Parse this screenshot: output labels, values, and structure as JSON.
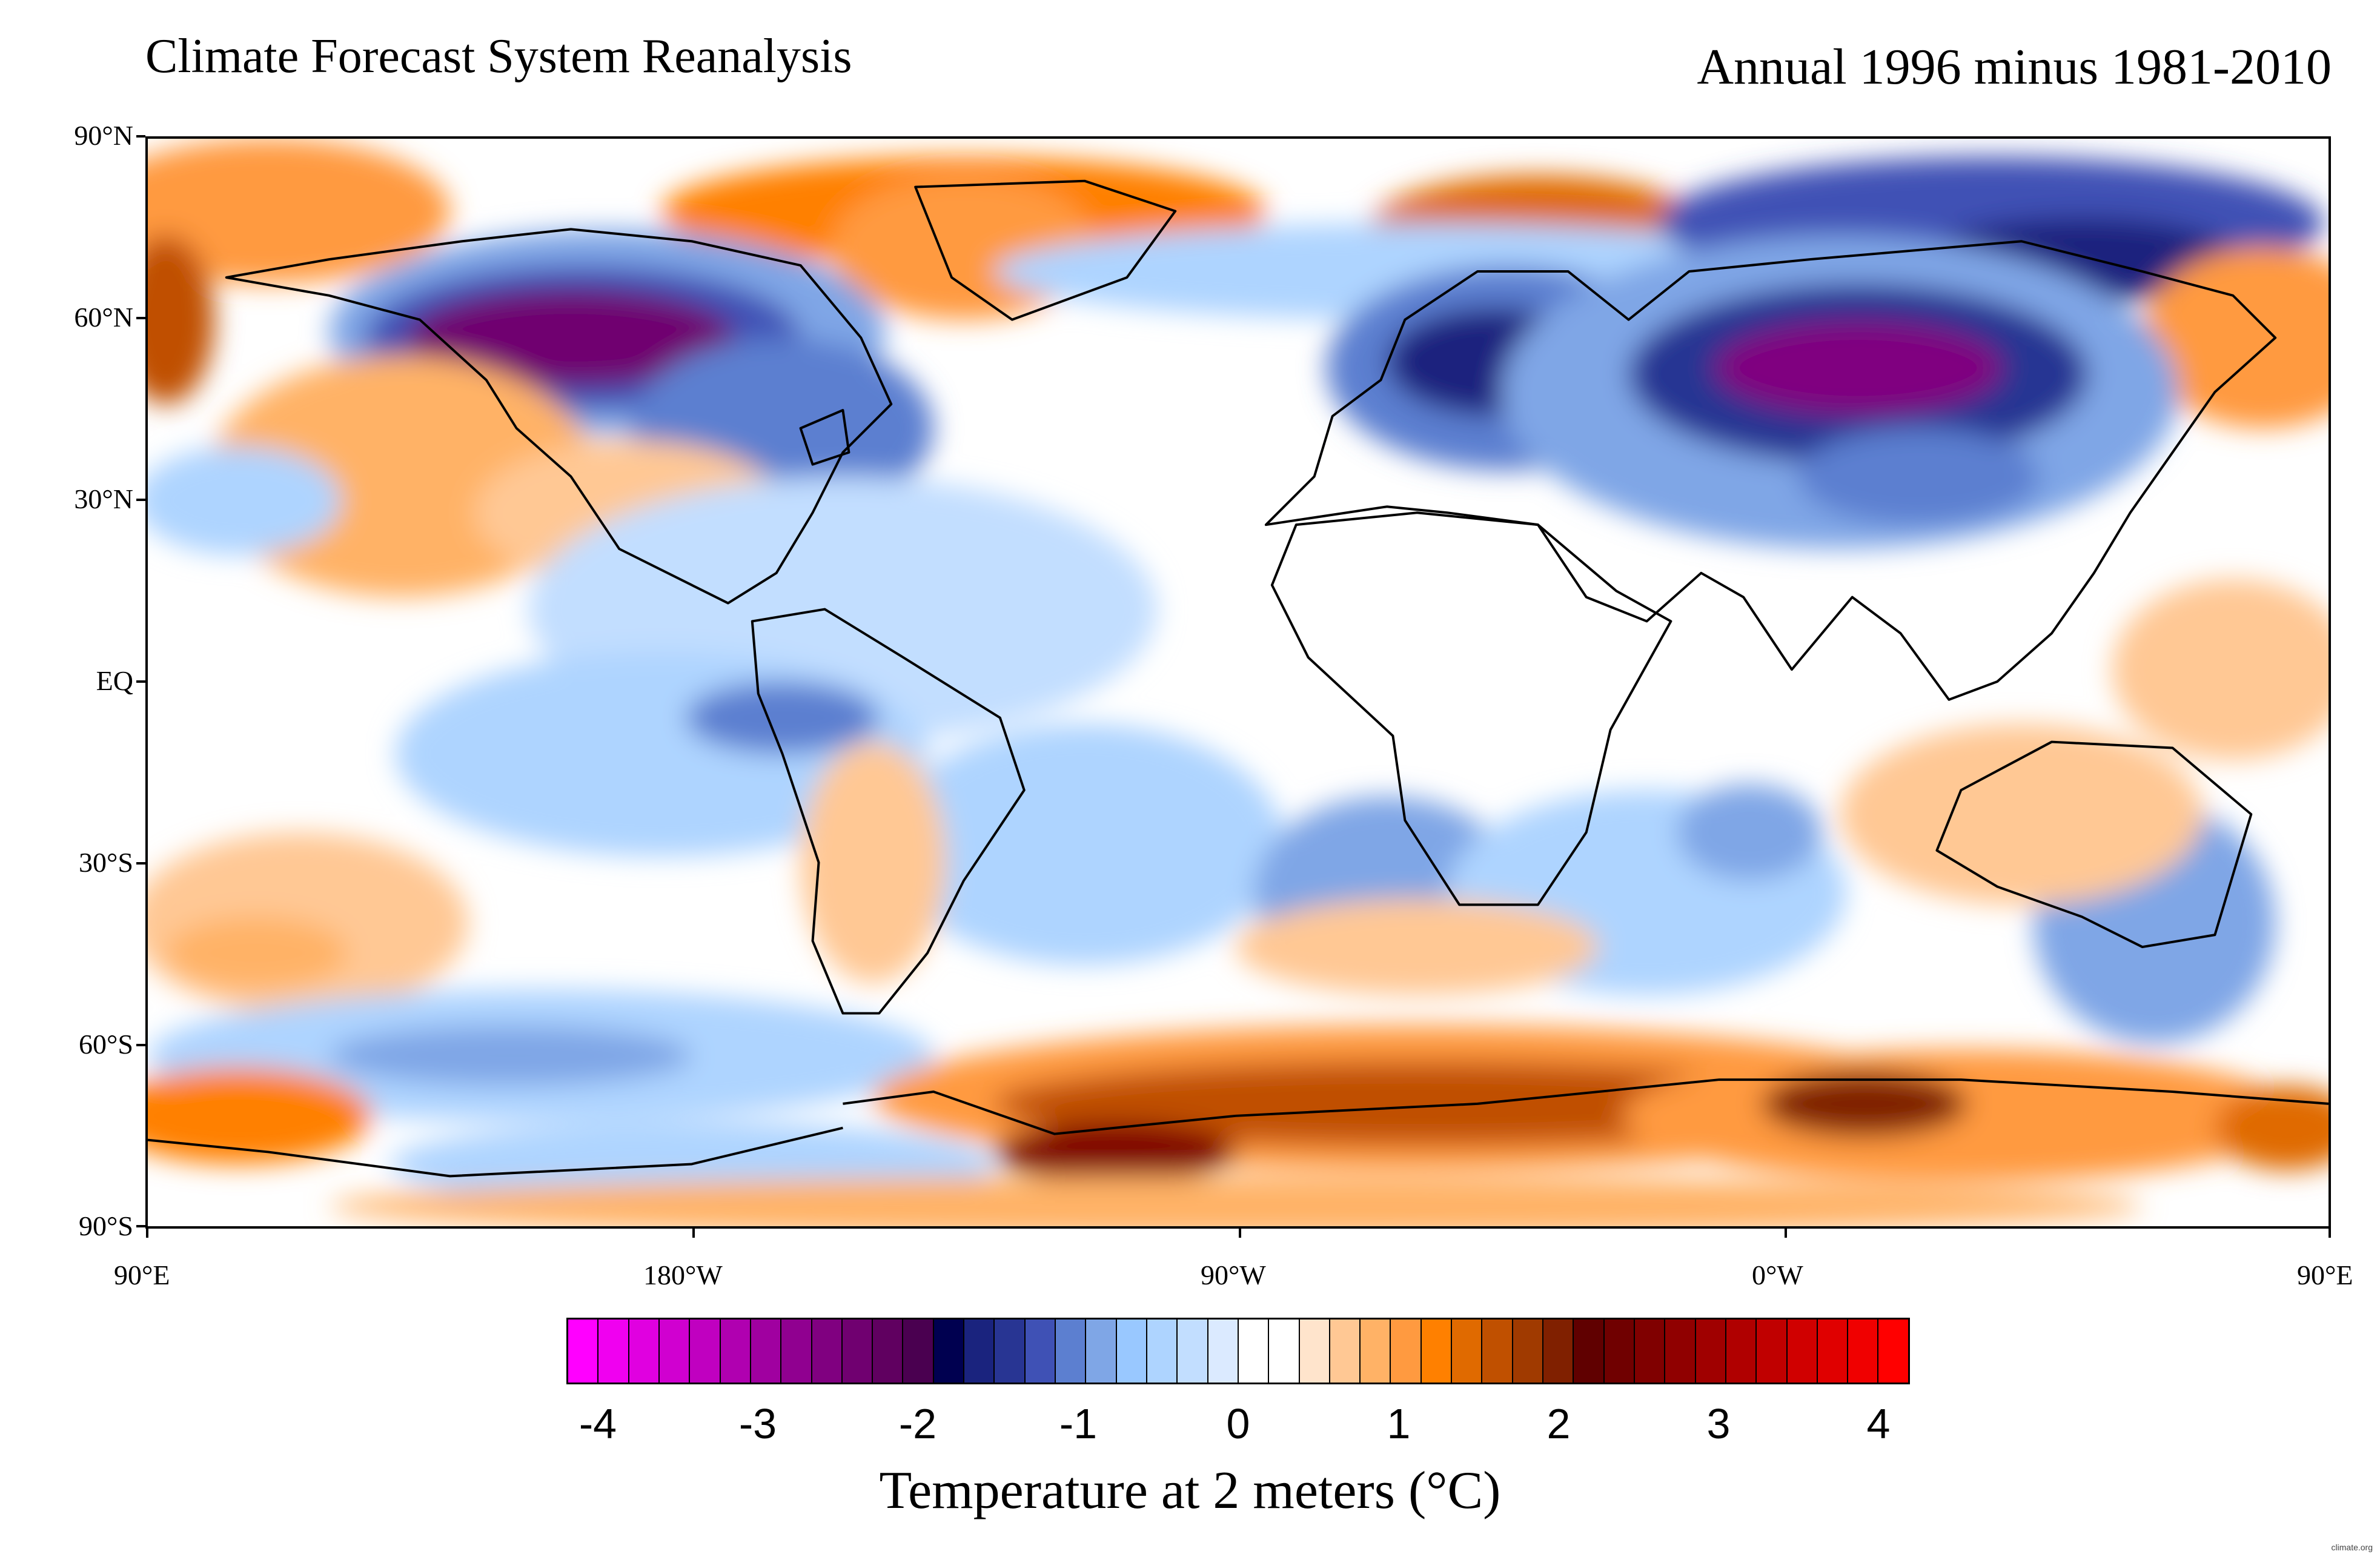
{
  "title_left": "Climate Forecast System Reanalysis",
  "title_right": "Annual 1996 minus 1981-2010",
  "lat_labels": [
    "90°N",
    "60°N",
    "30°N",
    "EQ",
    "30°S",
    "60°S",
    "90°S"
  ],
  "lon_labels": [
    "90°E",
    "180°W",
    "90°W",
    "0°W",
    "90°E"
  ],
  "colorbar": {
    "title": "Temperature at 2 meters (°C)",
    "tick_labels": [
      "-4",
      "-3",
      "-2",
      "-1",
      "0",
      "1",
      "2",
      "3",
      "4"
    ],
    "colors": [
      "#ff00ff",
      "#f000f0",
      "#e000e0",
      "#d000d0",
      "#c000c0",
      "#b000b0",
      "#a000a0",
      "#900090",
      "#800080",
      "#700070",
      "#600060",
      "#4a0050",
      "#000050",
      "#1a237e",
      "#283593",
      "#3f51b5",
      "#5c7fd0",
      "#7fa6e6",
      "#99c8ff",
      "#aed4ff",
      "#c2deff",
      "#dbeaff",
      "#ffffff",
      "#ffffff",
      "#ffe4cc",
      "#ffc894",
      "#ffb266",
      "#ff9a40",
      "#ff8000",
      "#e06a00",
      "#c05000",
      "#a03a00",
      "#802000",
      "#600000",
      "#700000",
      "#800000",
      "#900000",
      "#a00000",
      "#b00000",
      "#c00000",
      "#d00000",
      "#e00000",
      "#f00000",
      "#ff0000"
    ]
  },
  "credit": "climate.org"
}
